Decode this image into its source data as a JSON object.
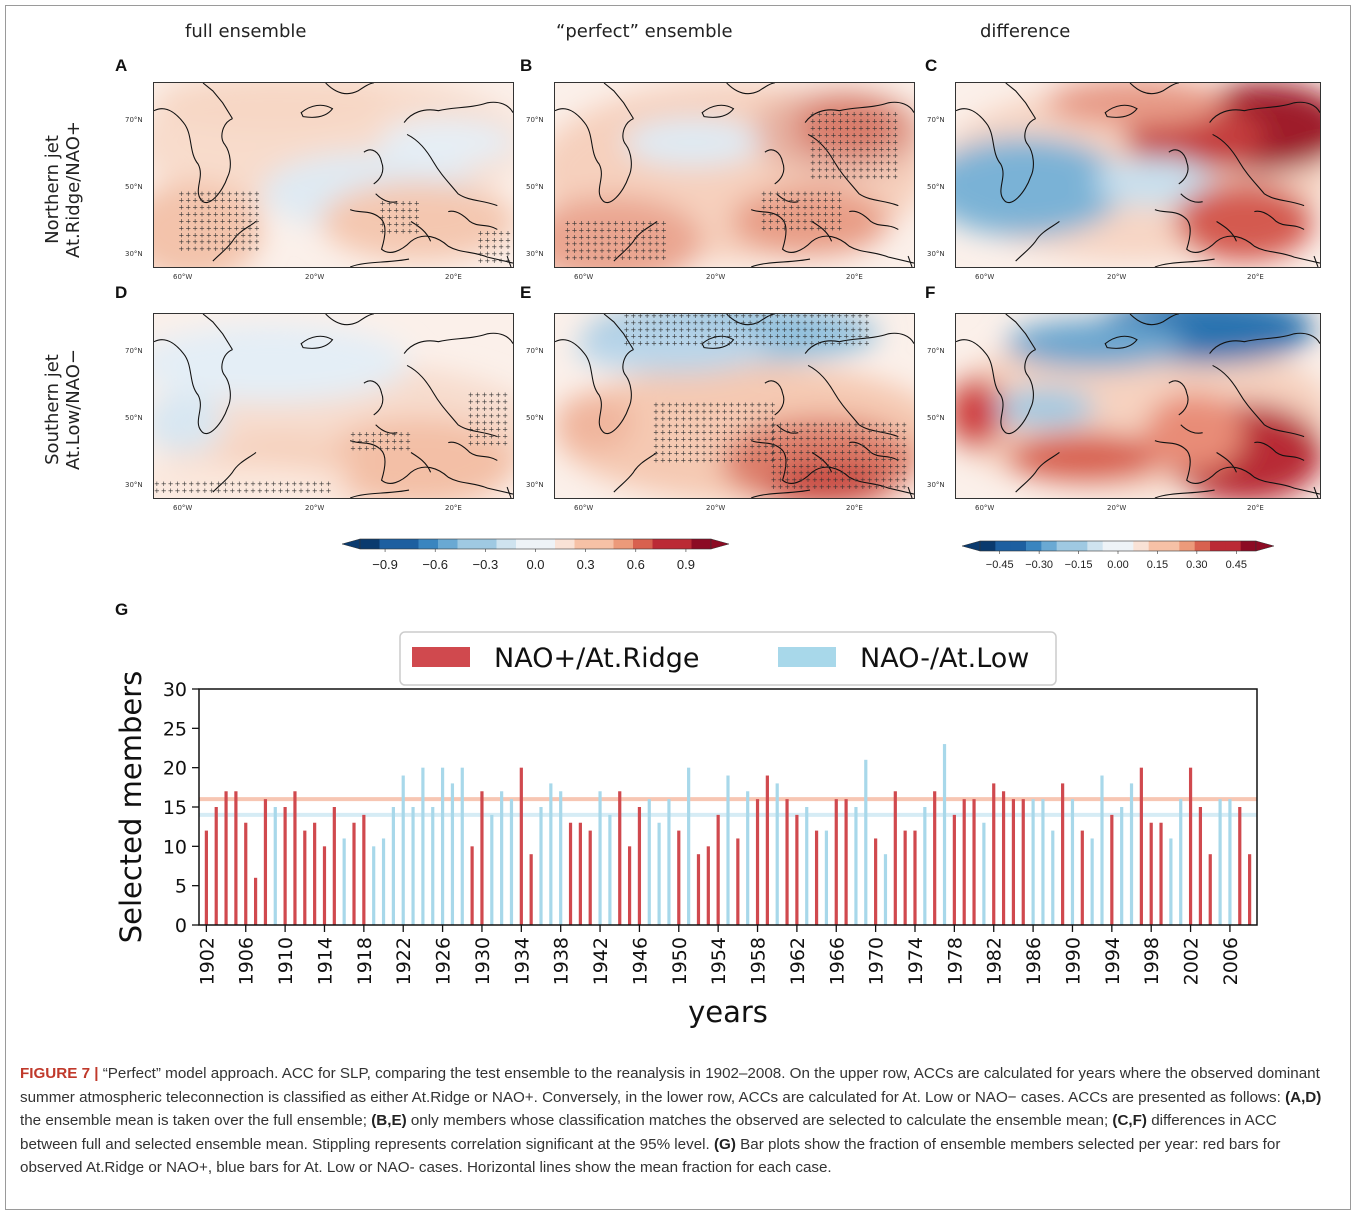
{
  "column_titles": [
    "full ensemble",
    "“perfect” ensemble",
    "difference"
  ],
  "row_labels": [
    {
      "line1": "Northern jet",
      "line2": "At.Ridge/NAO+"
    },
    {
      "line1": "Southern jet",
      "line2": "At.Low/NAO−"
    }
  ],
  "panels": [
    {
      "letter": "A",
      "mode": "weak_pos",
      "lat_labels": [
        "70°N",
        "50°N",
        "30°N"
      ],
      "lon_labels": [
        "60°W",
        "20°W",
        "20°E"
      ]
    },
    {
      "letter": "B",
      "mode": "strong_pos",
      "lat_labels": [
        "70°N",
        "50°N",
        "30°N"
      ],
      "lon_labels": [
        "60°W",
        "20°W",
        "20°E"
      ]
    },
    {
      "letter": "C",
      "mode": "diff_pos",
      "lat_labels": [
        "70°N",
        "50°N",
        "30°N"
      ],
      "lon_labels": [
        "60°W",
        "20°W",
        "20°E"
      ]
    },
    {
      "letter": "D",
      "mode": "weak_neg",
      "lat_labels": [
        "70°N",
        "50°N",
        "30°N"
      ],
      "lon_labels": [
        "60°W",
        "20°W",
        "20°E"
      ]
    },
    {
      "letter": "E",
      "mode": "strong_neg",
      "lat_labels": [
        "70°N",
        "50°N",
        "30°N"
      ],
      "lon_labels": [
        "60°W",
        "20°W",
        "20°E"
      ]
    },
    {
      "letter": "F",
      "mode": "diff_neg",
      "lat_labels": [
        "70°N",
        "50°N",
        "30°N"
      ],
      "lon_labels": [
        "60°W",
        "20°W",
        "20°E"
      ]
    }
  ],
  "colorbars": [
    {
      "ticks": [
        "−0.9",
        "−0.6",
        "−0.3",
        "0.0",
        "0.3",
        "0.6",
        "0.9"
      ]
    },
    {
      "ticks": [
        "−0.45",
        "−0.30",
        "−0.15",
        "0.00",
        "0.15",
        "0.30",
        "0.45"
      ]
    }
  ],
  "panel_g_letter": "G",
  "colors": {
    "red": "#d0494e",
    "blue": "#a8d8ea",
    "red_line": "#f7c6b3",
    "blue_line": "#d6ecf5"
  },
  "chart_data": {
    "type": "bar",
    "xlabel": "years",
    "ylabel": "Selected members",
    "ylim": [
      0,
      30
    ],
    "yticks": [
      0,
      5,
      10,
      15,
      20,
      25,
      30
    ],
    "xtick_labels": [
      "1902",
      "1906",
      "1910",
      "1914",
      "1918",
      "1922",
      "1926",
      "1930",
      "1934",
      "1938",
      "1942",
      "1946",
      "1950",
      "1954",
      "1958",
      "1962",
      "1966",
      "1970",
      "1974",
      "1978",
      "1982",
      "1986",
      "1990",
      "1994",
      "1998",
      "2002",
      "2006"
    ],
    "legend": [
      {
        "name": "NAO+/At.Ridge",
        "color": "#d0494e"
      },
      {
        "name": "NAO-/At.Low",
        "color": "#a8d8ea"
      }
    ],
    "legend_position": "top-center",
    "mean_lines": [
      {
        "case": "NAO+/At.Ridge",
        "value": 16
      },
      {
        "case": "NAO-/At.Low",
        "value": 14
      }
    ],
    "years": [
      1902,
      1903,
      1904,
      1905,
      1906,
      1907,
      1908,
      1909,
      1910,
      1911,
      1912,
      1913,
      1914,
      1915,
      1916,
      1917,
      1918,
      1919,
      1920,
      1921,
      1922,
      1923,
      1924,
      1925,
      1926,
      1927,
      1928,
      1929,
      1930,
      1931,
      1932,
      1933,
      1934,
      1935,
      1936,
      1937,
      1938,
      1939,
      1940,
      1941,
      1942,
      1943,
      1944,
      1945,
      1946,
      1947,
      1948,
      1949,
      1950,
      1951,
      1952,
      1953,
      1954,
      1955,
      1956,
      1957,
      1958,
      1959,
      1960,
      1961,
      1962,
      1963,
      1964,
      1965,
      1966,
      1967,
      1968,
      1969,
      1970,
      1971,
      1972,
      1973,
      1974,
      1975,
      1976,
      1977,
      1978,
      1979,
      1980,
      1981,
      1982,
      1983,
      1984,
      1985,
      1986,
      1987,
      1988,
      1989,
      1990,
      1991,
      1992,
      1993,
      1994,
      1995,
      1996,
      1997,
      1998,
      1999,
      2000,
      2001,
      2002,
      2003,
      2004,
      2005,
      2006,
      2007,
      2008
    ],
    "values": [
      12,
      15,
      17,
      17,
      13,
      6,
      16,
      15,
      15,
      17,
      12,
      13,
      10,
      15,
      11,
      13,
      14,
      10,
      11,
      15,
      19,
      15,
      20,
      15,
      20,
      18,
      20,
      10,
      17,
      14,
      17,
      16,
      20,
      9,
      15,
      18,
      17,
      13,
      13,
      12,
      17,
      14,
      17,
      10,
      15,
      16,
      13,
      16,
      12,
      20,
      9,
      10,
      14,
      19,
      11,
      17,
      16,
      19,
      18,
      16,
      14,
      15,
      12,
      12,
      16,
      16,
      15,
      21,
      11,
      9,
      17,
      12,
      12,
      15,
      17,
      23,
      14,
      16,
      16,
      13,
      18,
      17,
      16,
      16,
      16,
      16,
      12,
      18,
      16,
      12,
      11,
      19,
      14,
      15,
      18,
      20,
      13,
      13,
      11,
      16,
      20,
      15,
      9,
      16,
      16,
      15,
      9
    ],
    "classes": [
      "r",
      "r",
      "r",
      "r",
      "r",
      "r",
      "r",
      "b",
      "r",
      "r",
      "r",
      "r",
      "r",
      "r",
      "b",
      "r",
      "r",
      "b",
      "b",
      "b",
      "b",
      "b",
      "b",
      "b",
      "b",
      "b",
      "b",
      "r",
      "r",
      "b",
      "b",
      "b",
      "r",
      "r",
      "b",
      "b",
      "b",
      "r",
      "r",
      "r",
      "b",
      "b",
      "r",
      "r",
      "r",
      "b",
      "b",
      "b",
      "r",
      "b",
      "r",
      "r",
      "r",
      "b",
      "r",
      "b",
      "r",
      "r",
      "b",
      "r",
      "r",
      "b",
      "r",
      "b",
      "r",
      "r",
      "b",
      "b",
      "r",
      "b",
      "r",
      "r",
      "r",
      "b",
      "r",
      "b",
      "r",
      "r",
      "r",
      "b",
      "r",
      "r",
      "r",
      "r",
      "b",
      "b",
      "b",
      "r",
      "b",
      "r",
      "b",
      "b",
      "r",
      "b",
      "b",
      "r",
      "r",
      "r",
      "b",
      "b",
      "r",
      "r",
      "r",
      "b",
      "b",
      "r",
      "r"
    ]
  },
  "caption": {
    "label": "FIGURE 7 |",
    "text": " “Perfect” model approach. ACC for SLP, comparing the test ensemble to the reanalysis in 1902–2008. On the upper row, ACCs are calculated for years where the observed dominant summer atmospheric teleconnection is classified as either At.Ridge or NAO+. Conversely, in the lower row, ACCs are calculated for At. Low or NAO− cases. ACCs are presented as follows: ",
    "ad": "(A,D)",
    "ad_text": " the ensemble mean is taken over the full ensemble; ",
    "be": "(B,E)",
    "be_text": " only members whose classification matches the observed are selected to calculate the ensemble mean; ",
    "cf": "(C,F)",
    "cf_text": " differences in ACC between full and selected ensemble mean. Stippling represents correlation significant at the 95% level. ",
    "g": "(G)",
    "g_text": " Bar plots show the fraction of ensemble members selected per year: red bars for observed At.Ridge or NAO+, blue bars for At. Low or NAO- cases. Horizontal lines show the mean fraction for each case."
  }
}
